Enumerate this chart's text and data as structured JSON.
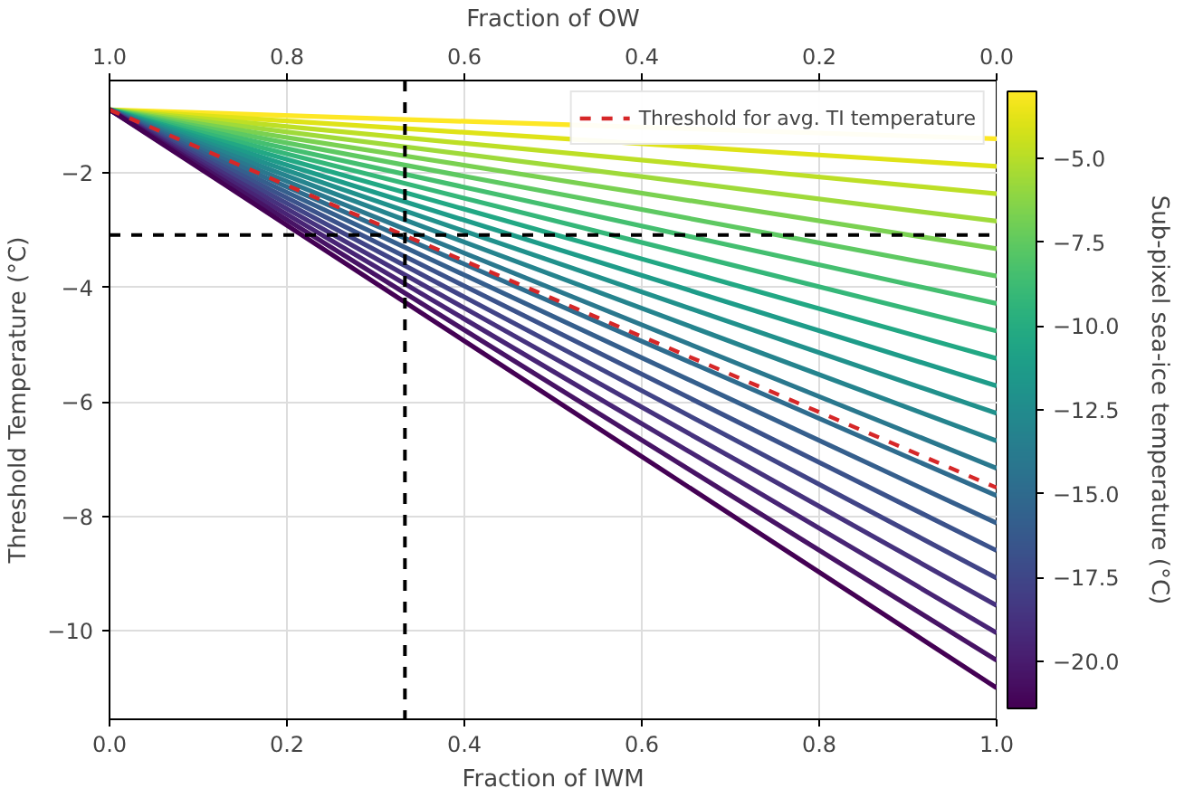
{
  "chart_data": {
    "type": "line",
    "xlabel": "Fraction of IWM",
    "ylabel": "Threshold Temperature (°C)",
    "x2label": "Fraction of OW",
    "clabel": "Sub-pixel sea-ice temperature (°C)",
    "xlim": [
      0,
      1
    ],
    "ylim": [
      -11.55,
      -0.38
    ],
    "x2lim": [
      1,
      0
    ],
    "xticks": [
      {
        "value": 0,
        "label": "0.0"
      },
      {
        "value": 0.2,
        "label": "0.2"
      },
      {
        "value": 0.4,
        "label": "0.4"
      },
      {
        "value": 0.6,
        "label": "0.6"
      },
      {
        "value": 0.8,
        "label": "0.8"
      },
      {
        "value": 1,
        "label": "1.0"
      }
    ],
    "x2ticks": [
      {
        "value": 1,
        "label": "1.0"
      },
      {
        "value": 0.8,
        "label": "0.8"
      },
      {
        "value": 0.6,
        "label": "0.6"
      },
      {
        "value": 0.4,
        "label": "0.4"
      },
      {
        "value": 0.2,
        "label": "0.2"
      },
      {
        "value": 0,
        "label": "0.0"
      }
    ],
    "yticks": [
      {
        "value": -10,
        "label": "−10"
      },
      {
        "value": -8,
        "label": "−8"
      },
      {
        "value": -6,
        "label": "−6"
      },
      {
        "value": -4,
        "label": "−4"
      },
      {
        "value": -2,
        "label": "−2"
      }
    ],
    "clim": [
      -21.4,
      -3.0
    ],
    "cticks": [
      {
        "value": -20,
        "label": "−20.0"
      },
      {
        "value": -17.5,
        "label": "−17.5"
      },
      {
        "value": -15,
        "label": "−15.0"
      },
      {
        "value": -12.5,
        "label": "−12.5"
      },
      {
        "value": -10,
        "label": "−10.0"
      },
      {
        "value": -7.5,
        "label": "−7.5"
      },
      {
        "value": -5,
        "label": "−5.0"
      }
    ],
    "grid": true,
    "legend": "top right",
    "line_style": "solid",
    "x": [
      0,
      1
    ],
    "series": [
      {
        "color": "#fde725",
        "values": [
          -0.89,
          -1.4
        ]
      },
      {
        "color": "#dfe318",
        "values": [
          -0.89,
          -1.88
        ]
      },
      {
        "color": "#bddf26",
        "values": [
          -0.89,
          -2.36
        ]
      },
      {
        "color": "#9fda3a",
        "values": [
          -0.89,
          -2.84
        ]
      },
      {
        "color": "#7ad151",
        "values": [
          -0.89,
          -3.32
        ]
      },
      {
        "color": "#5ec962",
        "values": [
          -0.89,
          -3.8
        ]
      },
      {
        "color": "#44bf70",
        "values": [
          -0.89,
          -4.28
        ]
      },
      {
        "color": "#35b779",
        "values": [
          -0.89,
          -4.76
        ]
      },
      {
        "color": "#22a884",
        "values": [
          -0.89,
          -5.24
        ]
      },
      {
        "color": "#1e9c89",
        "values": [
          -0.89,
          -5.72
        ]
      },
      {
        "color": "#21918c",
        "values": [
          -0.89,
          -6.2
        ]
      },
      {
        "color": "#25848e",
        "values": [
          -0.89,
          -6.68
        ]
      },
      {
        "color": "#2a788e",
        "values": [
          -0.89,
          -7.16
        ]
      },
      {
        "color": "#2f6c8e",
        "values": [
          -0.89,
          -7.64
        ]
      },
      {
        "color": "#355f8d",
        "values": [
          -0.89,
          -8.12
        ]
      },
      {
        "color": "#3b528b",
        "values": [
          -0.89,
          -8.6
        ]
      },
      {
        "color": "#414487",
        "values": [
          -0.89,
          -9.08
        ]
      },
      {
        "color": "#46327e",
        "values": [
          -0.89,
          -9.56
        ]
      },
      {
        "color": "#482475",
        "values": [
          -0.89,
          -10.04
        ]
      },
      {
        "color": "#471365",
        "values": [
          -0.89,
          -10.52
        ]
      },
      {
        "color": "#440154",
        "values": [
          -0.89,
          -11.0
        ]
      },
      {
        "name": "Threshold for avg. TI temperature",
        "color": "#d62728",
        "line_style": "dashed",
        "values": [
          -0.89,
          -7.5
        ]
      }
    ],
    "ref_lines": [
      {
        "axis": "x",
        "value": 0.333,
        "color": "#000000",
        "line_style": "dashed"
      },
      {
        "axis": "y",
        "value": -3.08,
        "color": "#000000",
        "line_style": "dashed"
      }
    ]
  }
}
